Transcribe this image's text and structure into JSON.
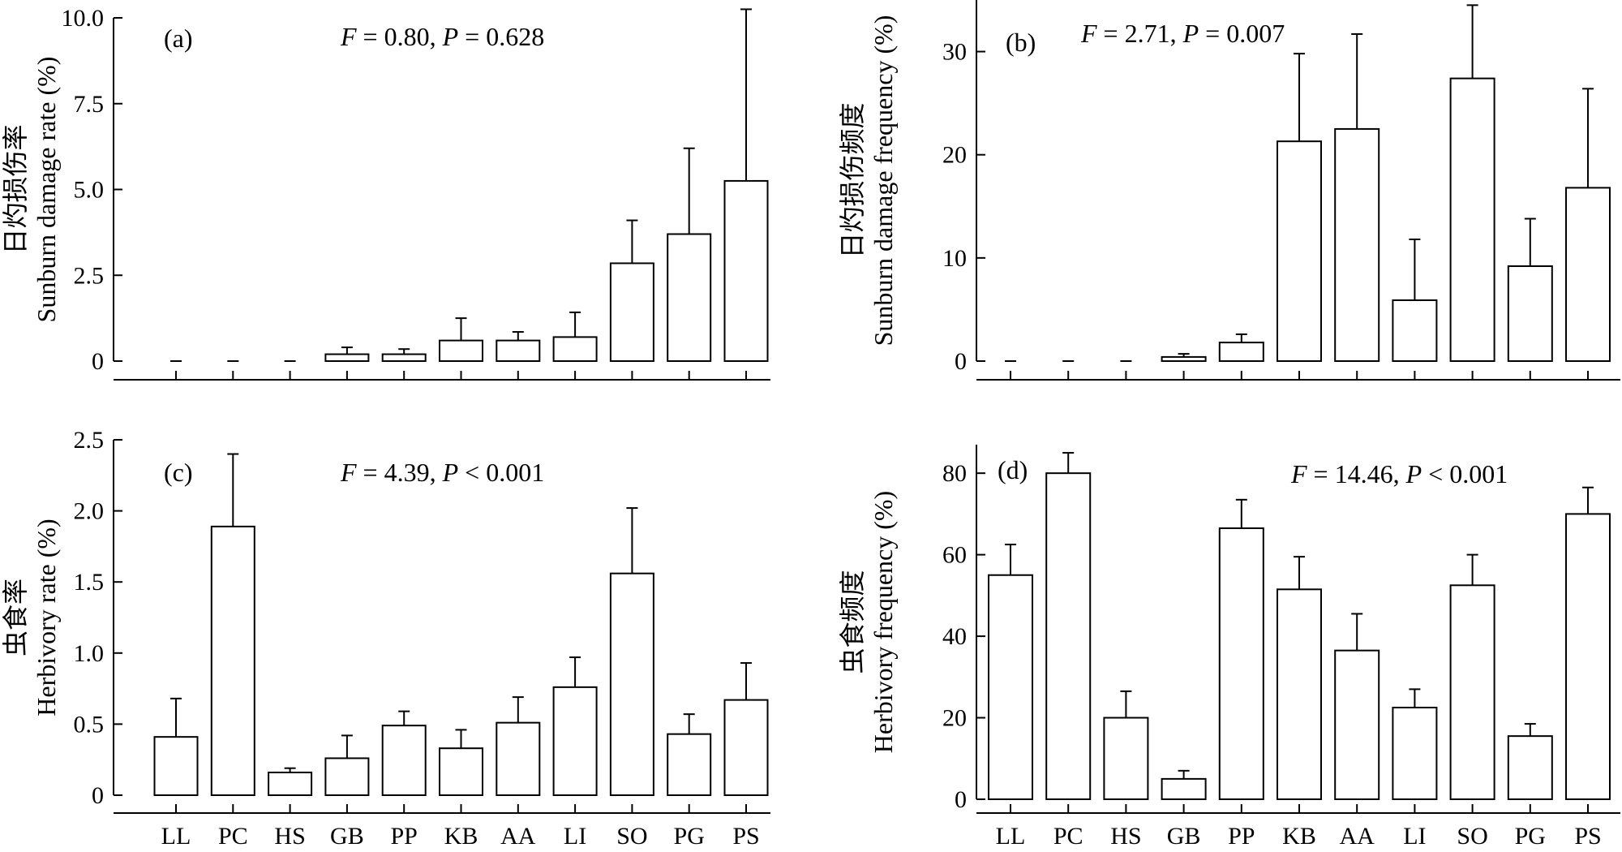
{
  "chart_data": [
    {
      "type": "bar",
      "panel": "(a)",
      "stat_text": {
        "f_label": "F",
        "f_value": " = 0.80, ",
        "p_label": "P",
        "p_value": " = 0.628"
      },
      "ylabel_cn": "日灼损伤率",
      "ylabel_en": "Sunburn damage rate (%)",
      "ylim": [
        0,
        10
      ],
      "yticks": [
        0,
        2.5,
        5,
        7.5,
        10
      ],
      "ytick_labels": [
        "0",
        "2.5",
        "5.0",
        "7.5",
        "10.0"
      ],
      "categories": [
        "LL",
        "PC",
        "HS",
        "GB",
        "PP",
        "KB",
        "AA",
        "LI",
        "SO",
        "PG",
        "PS"
      ],
      "show_xtick_labels": false,
      "values": [
        0,
        0,
        0,
        0.2,
        0.2,
        0.6,
        0.6,
        0.7,
        2.85,
        3.7,
        5.25
      ],
      "errors": [
        0,
        0,
        0,
        0.2,
        0.15,
        0.65,
        0.25,
        0.72,
        1.25,
        2.5,
        5.0
      ]
    },
    {
      "type": "bar",
      "panel": "(b)",
      "stat_text": {
        "f_label": "F",
        "f_value": " = 2.71, ",
        "p_label": "P",
        "p_value": " = 0.007"
      },
      "ylabel_cn": "日灼损伤频度",
      "ylabel_en": "Sunburn damage frequency (%)",
      "ylim": [
        0,
        35
      ],
      "yticks": [
        0,
        10,
        20,
        30
      ],
      "ytick_labels": [
        "0",
        "10",
        "20",
        "30"
      ],
      "categories": [
        "LL",
        "PC",
        "HS",
        "GB",
        "PP",
        "KB",
        "AA",
        "LI",
        "SO",
        "PG",
        "PS"
      ],
      "show_xtick_labels": false,
      "values": [
        0,
        0,
        0,
        0.4,
        1.8,
        21.3,
        22.5,
        5.9,
        27.4,
        9.2,
        16.8
      ],
      "errors": [
        0,
        0,
        0,
        0.3,
        0.8,
        8.5,
        9.2,
        5.9,
        7.1,
        4.6,
        9.6
      ]
    },
    {
      "type": "bar",
      "panel": "(c)",
      "stat_text": {
        "f_label": "F",
        "f_value": " = 4.39, ",
        "p_label": "P",
        "p_value": "  < 0.001"
      },
      "ylabel_cn": "虫食率",
      "ylabel_en": "Herbivory rate (%)",
      "ylim": [
        0,
        2.5
      ],
      "yticks": [
        0,
        0.5,
        1.0,
        1.5,
        2.0,
        2.5
      ],
      "ytick_labels": [
        "0",
        "0.5",
        "1.0",
        "1.5",
        "2.0",
        "2.5"
      ],
      "categories": [
        "LL",
        "PC",
        "HS",
        "GB",
        "PP",
        "KB",
        "AA",
        "LI",
        "SO",
        "PG",
        "PS"
      ],
      "show_xtick_labels": true,
      "values": [
        0.41,
        1.89,
        0.16,
        0.26,
        0.49,
        0.33,
        0.51,
        0.76,
        1.56,
        0.43,
        0.67
      ],
      "errors": [
        0.27,
        0.51,
        0.03,
        0.16,
        0.1,
        0.13,
        0.18,
        0.21,
        0.46,
        0.14,
        0.26
      ]
    },
    {
      "type": "bar",
      "panel": "(d)",
      "stat_text": {
        "f_label": "F",
        "f_value": " = 14.46, ",
        "p_label": "P",
        "p_value": " < 0.001"
      },
      "ylabel_cn": "虫食频度",
      "ylabel_en": "Herbivory frequency (%)",
      "ylim": [
        0,
        87
      ],
      "yticks": [
        0,
        20,
        40,
        60,
        80
      ],
      "ytick_labels": [
        "0",
        "20",
        "40",
        "60",
        "80"
      ],
      "categories": [
        "LL",
        "PC",
        "HS",
        "GB",
        "PP",
        "KB",
        "AA",
        "LI",
        "SO",
        "PG",
        "PS"
      ],
      "show_xtick_labels": true,
      "values": [
        55,
        80,
        20,
        5,
        66.5,
        51.5,
        36.5,
        22.5,
        52.5,
        15.5,
        70
      ],
      "errors": [
        7.5,
        5,
        6.5,
        2,
        7,
        8,
        9,
        4.5,
        7.5,
        3,
        6.5
      ]
    }
  ]
}
